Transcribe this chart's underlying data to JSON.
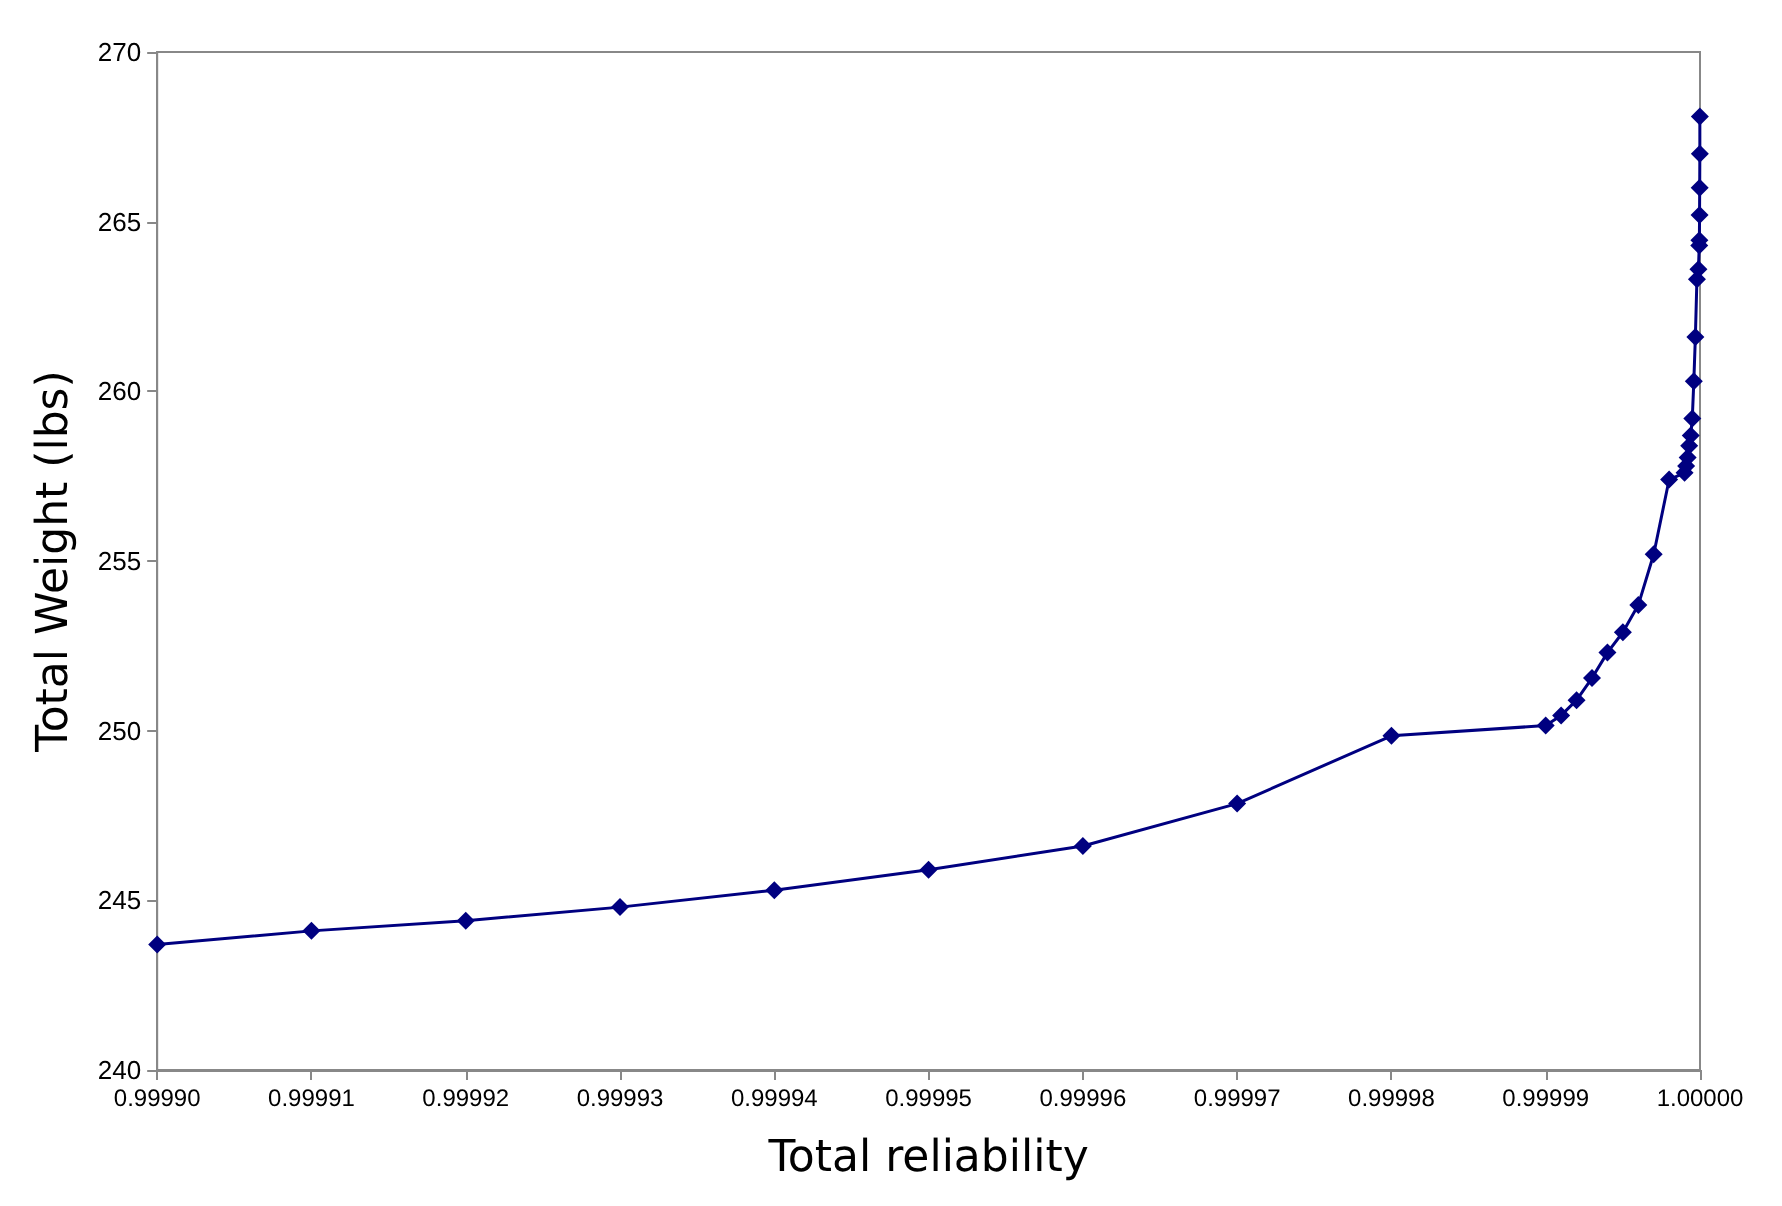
{
  "chart_data": {
    "type": "line",
    "xlabel": "Total reliability",
    "ylabel": "Total Weight (lbs)",
    "marker": "diamond",
    "line_style": "solid",
    "grid": false,
    "xlim": [
      0.9999,
      1.0
    ],
    "xticks": [
      {
        "value": 0.9999,
        "label": "0.99990"
      },
      {
        "value": 0.99991,
        "label": "0.99991"
      },
      {
        "value": 0.99992,
        "label": "0.99992"
      },
      {
        "value": 0.99993,
        "label": "0.99993"
      },
      {
        "value": 0.99994,
        "label": "0.99994"
      },
      {
        "value": 0.99995,
        "label": "0.99995"
      },
      {
        "value": 0.99996,
        "label": "0.99996"
      },
      {
        "value": 0.99997,
        "label": "0.99997"
      },
      {
        "value": 0.99998,
        "label": "0.99998"
      },
      {
        "value": 0.99999,
        "label": "0.99999"
      },
      {
        "value": 1.0,
        "label": "1.00000"
      }
    ],
    "ylim": [
      240,
      270
    ],
    "yticks": [
      240,
      245,
      250,
      255,
      260,
      265,
      270
    ],
    "series": [
      {
        "color": "#000080",
        "x": [
          0.9999,
          0.99991,
          0.99992,
          0.99993,
          0.99994,
          0.99995,
          0.99996,
          0.99997,
          0.99998,
          0.99999,
          0.999991,
          0.999992,
          0.999993,
          0.999994,
          0.999995,
          0.999996,
          0.999997,
          0.999998,
          0.999999,
          0.9999991,
          0.9999992,
          0.9999993,
          0.9999994,
          0.9999995,
          0.9999996,
          0.9999997,
          0.9999998,
          0.9999999,
          0.99999995,
          0.99999996,
          0.99999997,
          0.99999998,
          0.99999999,
          0.99999999
        ],
        "values": [
          243.7,
          244.1,
          244.4,
          244.8,
          245.3,
          245.9,
          246.6,
          247.85,
          249.85,
          250.15,
          250.45,
          250.9,
          251.55,
          252.3,
          252.9,
          253.7,
          255.2,
          257.4,
          257.6,
          257.8,
          258.05,
          258.4,
          258.7,
          259.2,
          260.3,
          261.6,
          263.3,
          263.6,
          264.3,
          264.45,
          265.2,
          266.0,
          267.0,
          268.1
        ]
      }
    ]
  }
}
